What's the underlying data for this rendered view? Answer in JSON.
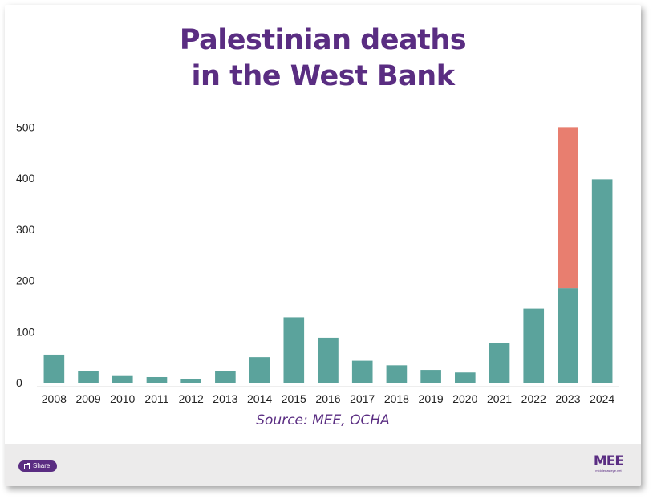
{
  "chart_data": {
    "type": "bar",
    "stacked": true,
    "title_lines": [
      "Palestinian deaths",
      "in the West Bank"
    ],
    "xlabel": "",
    "ylabel": "",
    "categories": [
      "2008",
      "2009",
      "2010",
      "2011",
      "2012",
      "2013",
      "2014",
      "2015",
      "2016",
      "2017",
      "2018",
      "2019",
      "2020",
      "2021",
      "2022",
      "2023",
      "2024"
    ],
    "series": [
      {
        "values": [
          55,
          22,
          13,
          11,
          7,
          23,
          50,
          128,
          88,
          43,
          34,
          25,
          20,
          77,
          145,
          185,
          398
        ]
      },
      {
        "values": [
          0,
          0,
          0,
          0,
          0,
          0,
          0,
          0,
          0,
          0,
          0,
          0,
          0,
          0,
          0,
          315,
          0
        ]
      }
    ],
    "ylim": [
      0,
      510
    ],
    "yticks": [
      "0",
      "100",
      "200",
      "300",
      "400",
      "500"
    ],
    "grid": false,
    "legend": "none",
    "source": "Source: MEE, OCHA",
    "colors": {
      "primary": "#5ba39c",
      "secondary": "#e87e6f",
      "title": "#5a2d82"
    }
  },
  "footer": {
    "share_label": "Share",
    "share_icon": "share-icon",
    "logo_text": "MEE",
    "logo_sub": "middleeasteye.net"
  }
}
